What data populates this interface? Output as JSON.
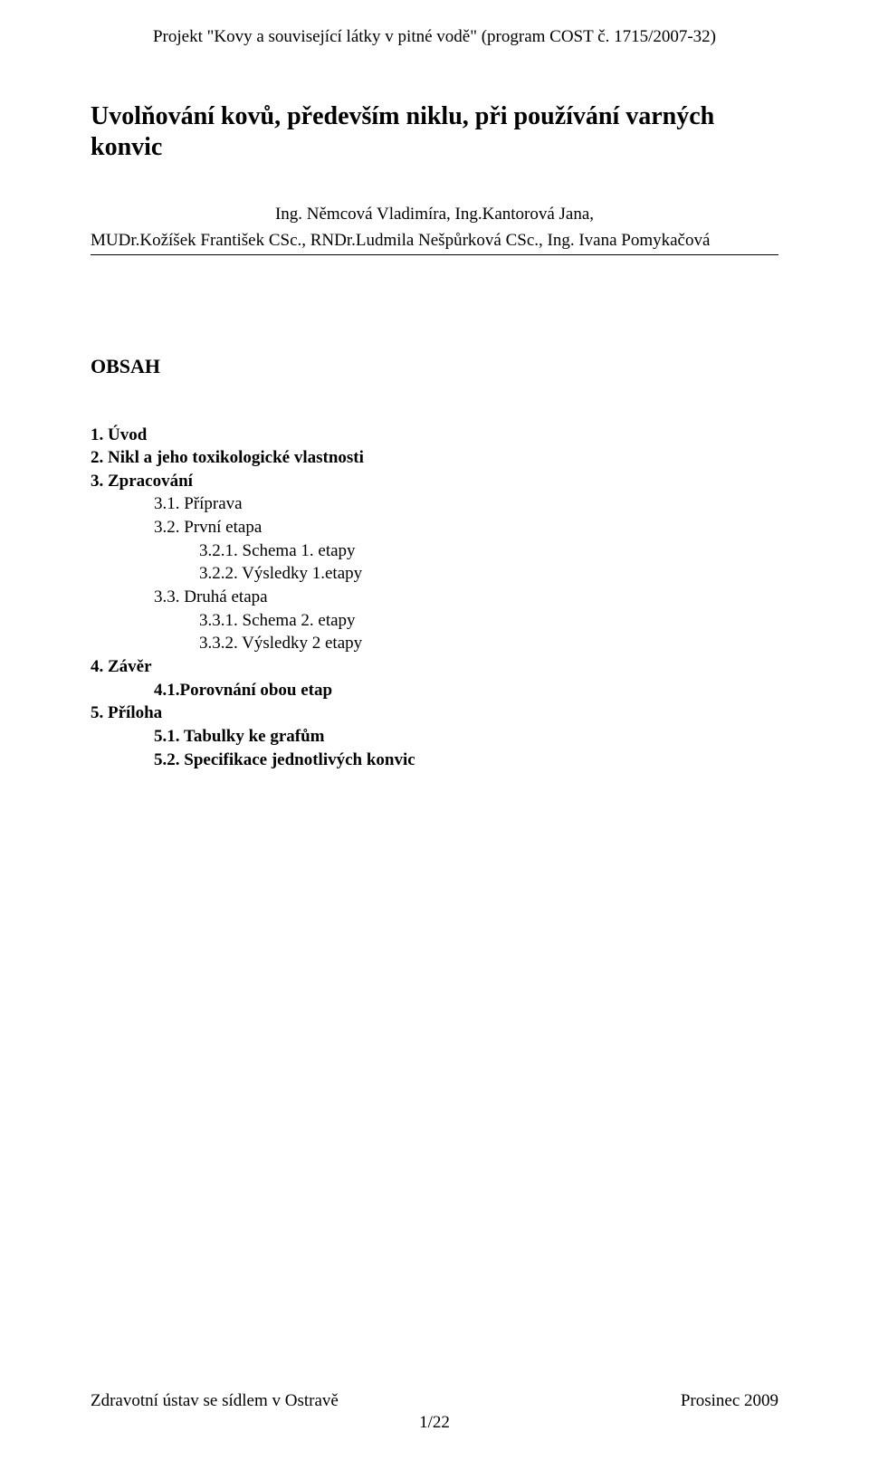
{
  "header": {
    "text": "Projekt \"Kovy a související látky v pitné vodě\" (program COST č. 1715/2007-32)"
  },
  "title": "Uvolňování kovů, především niklu, při používání varných konvic",
  "authors": {
    "line1": "Ing. Němcová Vladimíra,  Ing.Kantorová Jana,",
    "line2": "MUDr.Kožíšek František CSc., RNDr.Ludmila Nešpůrková CSc., Ing. Ivana Pomykačová"
  },
  "obsah_label": "OBSAH",
  "toc": {
    "i1": "1.  Úvod",
    "i2": "2.  Nikl a jeho toxikologické vlastnosti",
    "i3": "3.  Zpracování",
    "i31": "3.1. Příprava",
    "i32": "3.2. První etapa",
    "i321": "3.2.1. Schema 1. etapy",
    "i322": "3.2.2. Výsledky 1.etapy",
    "i33": "3.3. Druhá etapa",
    "i331": "3.3.1. Schema 2. etapy",
    "i332": "3.3.2. Výsledky 2 etapy",
    "i4": "4.  Závěr",
    "i41": "4.1.Porovnání obou etap",
    "i5": "5.  Příloha",
    "i51": "5.1. Tabulky ke grafům",
    "i52": "5.2. Specifikace jednotlivých konvic"
  },
  "footer": {
    "left": "Zdravotní ústav se sídlem v Ostravě",
    "right": "Prosinec 2009",
    "page": "1/22"
  }
}
